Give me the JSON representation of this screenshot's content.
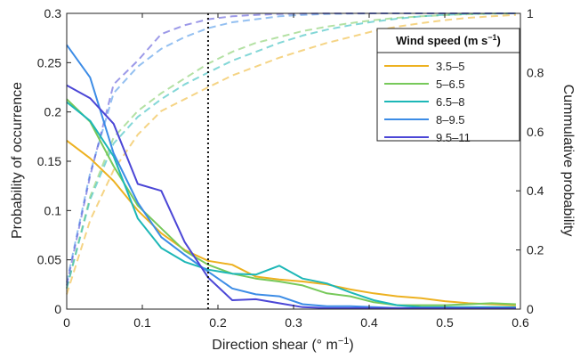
{
  "chart_data": {
    "type": "line",
    "xlabel_main": "Direction shear (° m",
    "xlabel_sup": "−1",
    "xlabel_end": ")",
    "ylabel": "Probability of occurrence",
    "y2label": "Cummulative probability",
    "xlim": [
      0,
      0.6
    ],
    "ylim": [
      0,
      0.3
    ],
    "y2lim": [
      0,
      1
    ],
    "xticks": [
      "0",
      "0.1",
      "0.2",
      "0.3",
      "0.4",
      "0.5",
      "0.6"
    ],
    "yticks": [
      "0",
      "0.05",
      "0.1",
      "0.15",
      "0.2",
      "0.25",
      "0.3"
    ],
    "y2ticks": [
      "0",
      "0.2",
      "0.4",
      "0.6",
      "0.8",
      "1"
    ],
    "legend_title_main": "Wind speed (m s",
    "legend_title_sup": "−1",
    "legend_title_end": ")",
    "legend_position": "top-right",
    "vline_x": 0.187,
    "x": [
      0,
      0.031,
      0.062,
      0.094,
      0.125,
      0.156,
      0.187,
      0.219,
      0.25,
      0.281,
      0.312,
      0.344,
      0.375,
      0.406,
      0.437,
      0.469,
      0.5,
      0.531,
      0.562,
      0.594
    ],
    "series": [
      {
        "name": "3.5–5",
        "color": "#EDB120",
        "values": [
          0.171,
          0.153,
          0.13,
          0.1,
          0.077,
          0.06,
          0.049,
          0.045,
          0.033,
          0.03,
          0.028,
          0.025,
          0.02,
          0.016,
          0.013,
          0.011,
          0.008,
          0.006,
          0.005,
          0.004
        ],
        "cumulative": [
          0.05,
          0.3,
          0.47,
          0.59,
          0.67,
          0.71,
          0.75,
          0.79,
          0.82,
          0.85,
          0.875,
          0.9,
          0.92,
          0.94,
          0.955,
          0.967,
          0.977,
          0.985,
          0.99,
          0.995
        ]
      },
      {
        "name": "5–6.5",
        "color": "#77C95A",
        "values": [
          0.213,
          0.19,
          0.145,
          0.105,
          0.082,
          0.059,
          0.045,
          0.036,
          0.031,
          0.028,
          0.024,
          0.016,
          0.013,
          0.007,
          0.004,
          0.004,
          0.004,
          0.005,
          0.006,
          0.005
        ],
        "cumulative": [
          0.07,
          0.38,
          0.58,
          0.67,
          0.73,
          0.78,
          0.83,
          0.87,
          0.9,
          0.92,
          0.94,
          0.955,
          0.967,
          0.977,
          0.985,
          0.99,
          0.994,
          0.997,
          0.999,
          1.0
        ]
      },
      {
        "name": "6.5–8",
        "color": "#1DB7B7",
        "values": [
          0.21,
          0.191,
          0.155,
          0.092,
          0.062,
          0.048,
          0.04,
          0.036,
          0.035,
          0.044,
          0.031,
          0.026,
          0.017,
          0.009,
          0.004,
          0.002,
          0.002,
          0.002,
          0.002,
          0.002
        ],
        "cumulative": [
          0.07,
          0.37,
          0.56,
          0.65,
          0.71,
          0.76,
          0.8,
          0.84,
          0.87,
          0.9,
          0.925,
          0.945,
          0.96,
          0.972,
          0.982,
          0.99,
          0.995,
          0.998,
          0.999,
          1.0
        ]
      },
      {
        "name": "8–9.5",
        "color": "#3C8CE6",
        "values": [
          0.268,
          0.235,
          0.158,
          0.108,
          0.073,
          0.055,
          0.038,
          0.021,
          0.015,
          0.013,
          0.005,
          0.003,
          0.003,
          0.002,
          0.001,
          0.001,
          0.001,
          0.001,
          0.001,
          0.001
        ],
        "cumulative": [
          0.09,
          0.46,
          0.73,
          0.82,
          0.88,
          0.92,
          0.95,
          0.97,
          0.98,
          0.99,
          0.995,
          0.998,
          0.999,
          1.0,
          1.0,
          1.0,
          1.0,
          1.0,
          1.0,
          1.0
        ]
      },
      {
        "name": "9.5–11",
        "color": "#4B46D6",
        "values": [
          0.227,
          0.214,
          0.188,
          0.127,
          0.12,
          0.068,
          0.032,
          0.009,
          0.01,
          0.006,
          0.002,
          0.001,
          0.001,
          0.001,
          0.001,
          0.001,
          0.001,
          0.001,
          0.001,
          0.001
        ],
        "cumulative": [
          0.08,
          0.45,
          0.76,
          0.84,
          0.93,
          0.96,
          0.98,
          0.99,
          0.995,
          0.998,
          0.999,
          1.0,
          1.0,
          1.0,
          1.0,
          1.0,
          1.0,
          1.0,
          1.0,
          1.0
        ]
      }
    ]
  }
}
